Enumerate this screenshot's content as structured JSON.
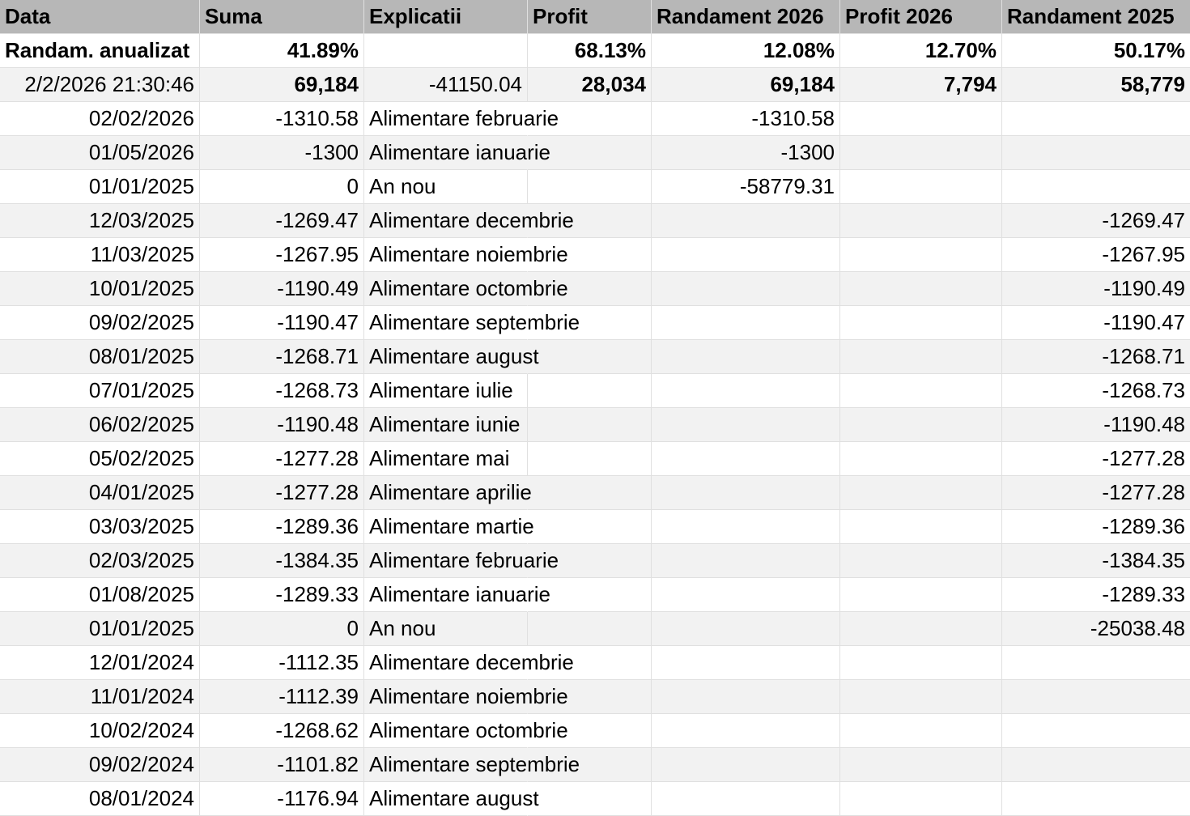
{
  "colors": {
    "header_bg": "#b7b7b7",
    "row_bg": "#ffffff",
    "alt_row_bg": "#f2f2f2",
    "gridline": "#e0e0e0",
    "text": "#000000"
  },
  "table": {
    "columns": [
      {
        "key": "data",
        "label": "Data",
        "align": "right"
      },
      {
        "key": "suma",
        "label": "Suma",
        "align": "right"
      },
      {
        "key": "explicatii",
        "label": "Explicatii",
        "align": "left"
      },
      {
        "key": "profit",
        "label": "Profit",
        "align": "right"
      },
      {
        "key": "randament-2026",
        "label": "Randament 2026",
        "align": "right"
      },
      {
        "key": "profit-2026",
        "label": "Profit 2026",
        "align": "right"
      },
      {
        "key": "randament-2025",
        "label": "Randament 2025",
        "align": "right"
      }
    ],
    "rows": [
      {
        "cells": [
          {
            "v": "Randam. anualizat",
            "bold": true,
            "align": "left"
          },
          {
            "v": "41.89%",
            "bold": true
          },
          {
            "v": ""
          },
          {
            "v": "68.13%",
            "bold": true
          },
          {
            "v": "12.08%",
            "bold": true
          },
          {
            "v": "12.70%",
            "bold": true
          },
          {
            "v": "50.17%",
            "bold": true
          }
        ]
      },
      {
        "cells": [
          {
            "v": "2/2/2026 21:30:46"
          },
          {
            "v": "69,184",
            "bold": true
          },
          {
            "v": "-41150.04",
            "align": "right"
          },
          {
            "v": "28,034",
            "bold": true
          },
          {
            "v": "69,184",
            "bold": true
          },
          {
            "v": "7,794",
            "bold": true
          },
          {
            "v": "58,779",
            "bold": true
          }
        ]
      },
      {
        "cells": [
          {
            "v": "02/02/2026"
          },
          {
            "v": "-1310.58"
          },
          {
            "v": "Alimentare februarie"
          },
          {
            "v": ""
          },
          {
            "v": "-1310.58"
          },
          {
            "v": ""
          },
          {
            "v": ""
          }
        ],
        "overflow": true
      },
      {
        "cells": [
          {
            "v": "01/05/2026"
          },
          {
            "v": "-1300"
          },
          {
            "v": "Alimentare ianuarie"
          },
          {
            "v": ""
          },
          {
            "v": "-1300"
          },
          {
            "v": ""
          },
          {
            "v": ""
          }
        ],
        "overflow": true
      },
      {
        "cells": [
          {
            "v": "01/01/2025"
          },
          {
            "v": "0"
          },
          {
            "v": "An nou"
          },
          {
            "v": ""
          },
          {
            "v": "-58779.31"
          },
          {
            "v": ""
          },
          {
            "v": ""
          }
        ]
      },
      {
        "cells": [
          {
            "v": "12/03/2025"
          },
          {
            "v": "-1269.47"
          },
          {
            "v": "Alimentare decembrie"
          },
          {
            "v": ""
          },
          {
            "v": ""
          },
          {
            "v": ""
          },
          {
            "v": "-1269.47"
          }
        ],
        "overflow": true
      },
      {
        "cells": [
          {
            "v": "11/03/2025"
          },
          {
            "v": "-1267.95"
          },
          {
            "v": "Alimentare noiembrie"
          },
          {
            "v": ""
          },
          {
            "v": ""
          },
          {
            "v": ""
          },
          {
            "v": "-1267.95"
          }
        ],
        "overflow": true
      },
      {
        "cells": [
          {
            "v": "10/01/2025"
          },
          {
            "v": "-1190.49"
          },
          {
            "v": "Alimentare octombrie"
          },
          {
            "v": ""
          },
          {
            "v": ""
          },
          {
            "v": ""
          },
          {
            "v": "-1190.49"
          }
        ],
        "overflow": true
      },
      {
        "cells": [
          {
            "v": "09/02/2025"
          },
          {
            "v": "-1190.47"
          },
          {
            "v": "Alimentare septembrie"
          },
          {
            "v": ""
          },
          {
            "v": ""
          },
          {
            "v": ""
          },
          {
            "v": "-1190.47"
          }
        ],
        "overflow": true
      },
      {
        "cells": [
          {
            "v": "08/01/2025"
          },
          {
            "v": "-1268.71"
          },
          {
            "v": "Alimentare august"
          },
          {
            "v": ""
          },
          {
            "v": ""
          },
          {
            "v": ""
          },
          {
            "v": "-1268.71"
          }
        ],
        "overflow": true
      },
      {
        "cells": [
          {
            "v": "07/01/2025"
          },
          {
            "v": "-1268.73"
          },
          {
            "v": "Alimentare iulie"
          },
          {
            "v": ""
          },
          {
            "v": ""
          },
          {
            "v": ""
          },
          {
            "v": "-1268.73"
          }
        ]
      },
      {
        "cells": [
          {
            "v": "06/02/2025"
          },
          {
            "v": "-1190.48"
          },
          {
            "v": "Alimentare iunie"
          },
          {
            "v": ""
          },
          {
            "v": ""
          },
          {
            "v": ""
          },
          {
            "v": "-1190.48"
          }
        ]
      },
      {
        "cells": [
          {
            "v": "05/02/2025"
          },
          {
            "v": "-1277.28"
          },
          {
            "v": "Alimentare mai"
          },
          {
            "v": ""
          },
          {
            "v": ""
          },
          {
            "v": ""
          },
          {
            "v": "-1277.28"
          }
        ]
      },
      {
        "cells": [
          {
            "v": "04/01/2025"
          },
          {
            "v": "-1277.28"
          },
          {
            "v": "Alimentare aprilie"
          },
          {
            "v": ""
          },
          {
            "v": ""
          },
          {
            "v": ""
          },
          {
            "v": "-1277.28"
          }
        ],
        "overflow": true
      },
      {
        "cells": [
          {
            "v": "03/03/2025"
          },
          {
            "v": "-1289.36"
          },
          {
            "v": "Alimentare martie"
          },
          {
            "v": ""
          },
          {
            "v": ""
          },
          {
            "v": ""
          },
          {
            "v": "-1289.36"
          }
        ],
        "overflow": true
      },
      {
        "cells": [
          {
            "v": "02/03/2025"
          },
          {
            "v": "-1384.35"
          },
          {
            "v": "Alimentare februarie"
          },
          {
            "v": ""
          },
          {
            "v": ""
          },
          {
            "v": ""
          },
          {
            "v": "-1384.35"
          }
        ],
        "overflow": true
      },
      {
        "cells": [
          {
            "v": "01/08/2025"
          },
          {
            "v": "-1289.33"
          },
          {
            "v": "Alimentare ianuarie"
          },
          {
            "v": ""
          },
          {
            "v": ""
          },
          {
            "v": ""
          },
          {
            "v": "-1289.33"
          }
        ],
        "overflow": true
      },
      {
        "cells": [
          {
            "v": "01/01/2025"
          },
          {
            "v": "0"
          },
          {
            "v": "An nou"
          },
          {
            "v": ""
          },
          {
            "v": ""
          },
          {
            "v": ""
          },
          {
            "v": "-25038.48"
          }
        ]
      },
      {
        "cells": [
          {
            "v": "12/01/2024"
          },
          {
            "v": "-1112.35"
          },
          {
            "v": "Alimentare decembrie"
          },
          {
            "v": ""
          },
          {
            "v": ""
          },
          {
            "v": ""
          },
          {
            "v": ""
          }
        ],
        "overflow": true
      },
      {
        "cells": [
          {
            "v": "11/01/2024"
          },
          {
            "v": "-1112.39"
          },
          {
            "v": "Alimentare noiembrie"
          },
          {
            "v": ""
          },
          {
            "v": ""
          },
          {
            "v": ""
          },
          {
            "v": ""
          }
        ],
        "overflow": true
      },
      {
        "cells": [
          {
            "v": "10/02/2024"
          },
          {
            "v": "-1268.62"
          },
          {
            "v": "Alimentare octombrie"
          },
          {
            "v": ""
          },
          {
            "v": ""
          },
          {
            "v": ""
          },
          {
            "v": ""
          }
        ],
        "overflow": true
      },
      {
        "cells": [
          {
            "v": "09/02/2024"
          },
          {
            "v": "-1101.82"
          },
          {
            "v": "Alimentare septembrie"
          },
          {
            "v": ""
          },
          {
            "v": ""
          },
          {
            "v": ""
          },
          {
            "v": ""
          }
        ],
        "overflow": true
      },
      {
        "cells": [
          {
            "v": "08/01/2024"
          },
          {
            "v": "-1176.94"
          },
          {
            "v": "Alimentare august"
          },
          {
            "v": ""
          },
          {
            "v": ""
          },
          {
            "v": ""
          },
          {
            "v": ""
          }
        ],
        "overflow": true
      }
    ]
  }
}
